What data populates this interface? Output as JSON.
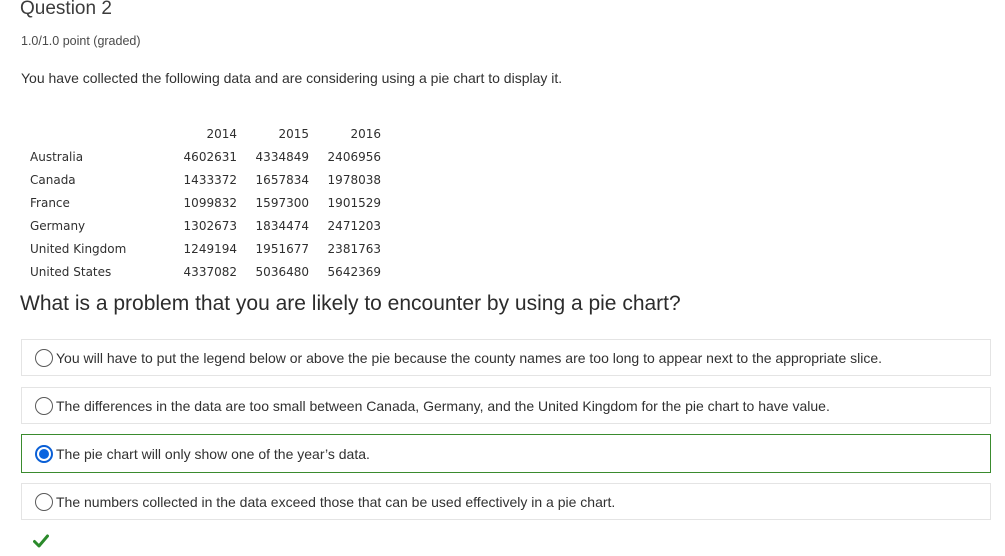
{
  "question": {
    "title": "Question 2",
    "score": "1.0/1.0 point (graded)",
    "prompt": "You have collected the following data and are considering using a pie chart to display it.",
    "text": "What is a problem that you are likely to encounter by using a pie chart?"
  },
  "table": {
    "years": [
      "2014",
      "2015",
      "2016"
    ],
    "rows": [
      {
        "country": "Australia",
        "values": [
          "4602631",
          "4334849",
          "2406956"
        ]
      },
      {
        "country": "Canada",
        "values": [
          "1433372",
          "1657834",
          "1978038"
        ]
      },
      {
        "country": "France",
        "values": [
          "1099832",
          "1597300",
          "1901529"
        ]
      },
      {
        "country": "Germany",
        "values": [
          "1302673",
          "1834474",
          "2471203"
        ]
      },
      {
        "country": "United Kingdom",
        "values": [
          "1249194",
          "1951677",
          "2381763"
        ]
      },
      {
        "country": "United States",
        "values": [
          "4337082",
          "5036480",
          "5642369"
        ]
      }
    ]
  },
  "choices": [
    {
      "label": "You will have to put the legend below or above the pie because the county names are too long to appear next to the appropriate slice.",
      "selected": false
    },
    {
      "label": "The differences in the data are too small between Canada, Germany, and the United Kingdom for the pie chart to have value.",
      "selected": false
    },
    {
      "label": "The pie chart will only show one of the year’s data.",
      "selected": true
    },
    {
      "label": "The numbers collected in the data exceed those that can be used effectively in a pie chart.",
      "selected": false
    }
  ],
  "result": {
    "icon": "checkmark-icon",
    "status": "correct",
    "color": "#2b8a2b"
  },
  "colors": {
    "selected_border": "#3a8b2e",
    "radio_selected": "#0a64e0"
  }
}
